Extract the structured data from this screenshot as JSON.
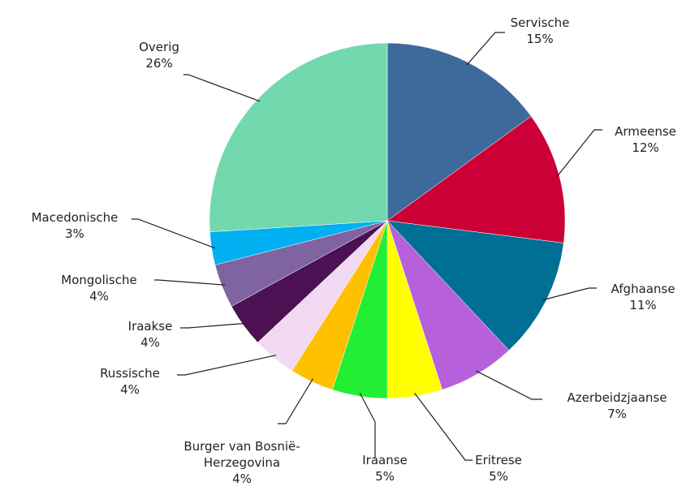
{
  "chart_data": {
    "type": "pie",
    "categories": [
      "Servische",
      "Armeense",
      "Afghaanse",
      "Azerbeidzjaanse",
      "Eritrese",
      "Iraanse",
      "Burger van Bosnië-Herzegovina",
      "Russische",
      "Iraakse",
      "Mongolische",
      "Macedonische",
      "Overig"
    ],
    "values": [
      15,
      12,
      11,
      7,
      5,
      5,
      4,
      4,
      4,
      4,
      3,
      26
    ],
    "value_labels": [
      "15%",
      "12%",
      "11%",
      "7%",
      "5%",
      "5%",
      "4%",
      "4%",
      "4%",
      "4%",
      "3%",
      "26%"
    ],
    "colors": [
      "#3e6a9b",
      "#cc0036",
      "#006f95",
      "#b660dc",
      "#ffff00",
      "#22ee33",
      "#ffc000",
      "#f1d9f1",
      "#4b1152",
      "#8063a1",
      "#00b0f0",
      "#72d8ae"
    ]
  }
}
